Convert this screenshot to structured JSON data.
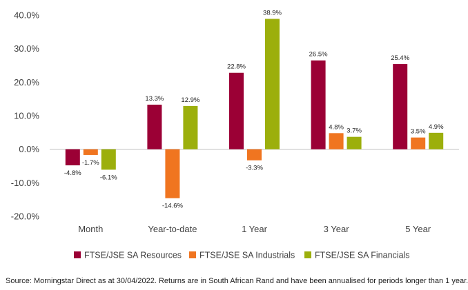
{
  "chart_data": {
    "type": "bar",
    "categories": [
      "Month",
      "Year-to-date",
      "1 Year",
      "3 Year",
      "5 Year"
    ],
    "series": [
      {
        "name": "FTSE/JSE SA Resources",
        "color": "#9b0035",
        "values": [
          -4.8,
          13.3,
          22.8,
          26.5,
          25.4
        ],
        "labels": [
          "-4.8%",
          "13.3%",
          "22.8%",
          "26.5%",
          "25.4%"
        ]
      },
      {
        "name": "FTSE/JSE SA Industrials",
        "color": "#f07520",
        "values": [
          -1.7,
          -14.6,
          -3.3,
          4.8,
          3.5
        ],
        "labels": [
          "-1.7%",
          "-14.6%",
          "-3.3%",
          "4.8%",
          "3.5%"
        ]
      },
      {
        "name": "FTSE/JSE SA Financials",
        "color": "#9caf0c",
        "values": [
          -6.1,
          12.9,
          38.9,
          3.7,
          4.9
        ],
        "labels": [
          "-6.1%",
          "12.9%",
          "38.9%",
          "3.7%",
          "4.9%"
        ]
      }
    ],
    "yticks": [
      40,
      30,
      20,
      10,
      0,
      -10,
      -20
    ],
    "ytick_labels": [
      "40.0%",
      "30.0%",
      "20.0%",
      "10.0%",
      "0.0%",
      "-10.0%",
      "-20.0%"
    ],
    "ylim": [
      -20,
      40
    ],
    "grid": false,
    "legend": "bottom",
    "zero_line_color": "#bfbfbf"
  },
  "source_note": "Source: Morningstar Direct as at 30/04/2022. Returns are in South African Rand and have been annualised for periods longer than 1 year."
}
